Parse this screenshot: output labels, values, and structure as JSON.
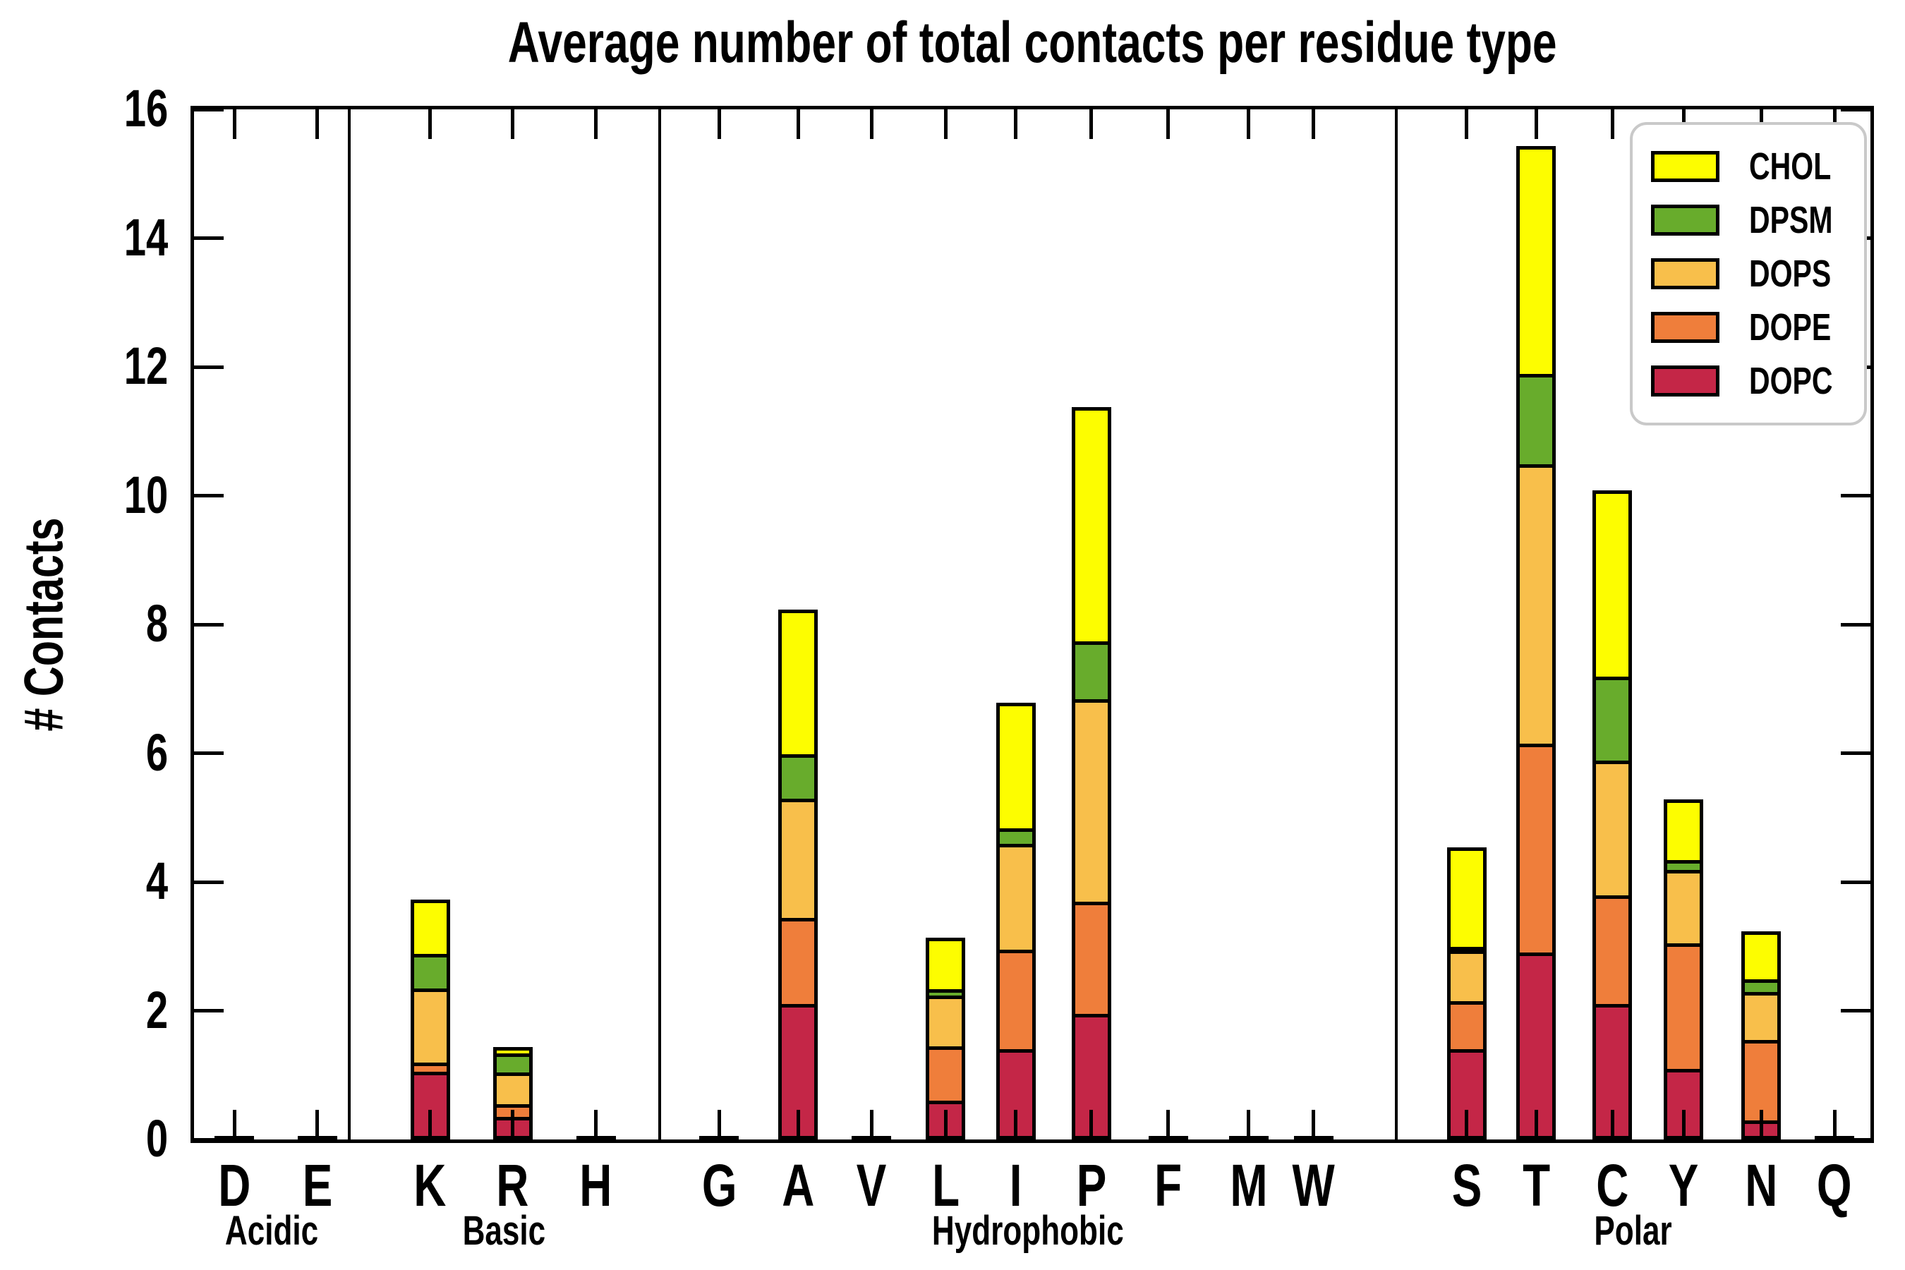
{
  "title": "Average number of total contacts per residue type",
  "ylabel": "# Contacts",
  "colors": {
    "background": "#ffffff",
    "bar_outline": "#000000",
    "axis": "#000000",
    "legend_border": "#c9c9c9"
  },
  "chart_data": {
    "type": "bar",
    "stacked": true,
    "title": "Average number of total contacts per residue type",
    "xlabel": "",
    "ylabel": "# Contacts",
    "ylim": [
      0,
      16
    ],
    "yticks": [
      0,
      2,
      4,
      6,
      8,
      10,
      12,
      14,
      16
    ],
    "grid": false,
    "legend_position": "upper right",
    "legend_order": [
      "CHOL",
      "DPSM",
      "DOPS",
      "DOPE",
      "DOPC"
    ],
    "groups": [
      {
        "label": "Acidic",
        "categories": [
          "D",
          "E"
        ]
      },
      {
        "label": "Basic",
        "categories": [
          "K",
          "R",
          "H"
        ]
      },
      {
        "label": "Hydrophobic",
        "categories": [
          "G",
          "A",
          "V",
          "L",
          "I",
          "P",
          "F",
          "M",
          "W"
        ]
      },
      {
        "label": "Polar",
        "categories": [
          "S",
          "T",
          "C",
          "Y",
          "N",
          "Q"
        ]
      }
    ],
    "categories_flat": [
      "D",
      "E",
      "K",
      "R",
      "H",
      "G",
      "A",
      "V",
      "L",
      "I",
      "P",
      "F",
      "M",
      "W",
      "S",
      "T",
      "C",
      "Y",
      "N",
      "Q"
    ],
    "series": [
      {
        "name": "DOPC",
        "color": "#c42647",
        "values": [
          0.02,
          0.02,
          1.05,
          0.35,
          0.02,
          0.02,
          2.1,
          0.02,
          0.6,
          1.4,
          1.95,
          0.02,
          0.02,
          0.02,
          1.4,
          2.9,
          2.1,
          1.1,
          0.3,
          0.02
        ]
      },
      {
        "name": "DOPE",
        "color": "#ef7e3b",
        "values": [
          0,
          0,
          0.2,
          0.25,
          0,
          0,
          1.4,
          0,
          0.9,
          1.6,
          1.8,
          0,
          0,
          0,
          0.8,
          3.3,
          1.75,
          2.0,
          1.3,
          0
        ]
      },
      {
        "name": "DOPS",
        "color": "#f8bf4b",
        "values": [
          0,
          0,
          1.2,
          0.55,
          0,
          0,
          1.9,
          0,
          0.85,
          1.7,
          3.2,
          0,
          0,
          0,
          0.85,
          4.4,
          2.15,
          1.2,
          0.8,
          0
        ]
      },
      {
        "name": "DPSM",
        "color": "#68ac2c",
        "values": [
          0,
          0,
          0.6,
          0.35,
          0,
          0,
          0.75,
          0,
          0.15,
          0.3,
          0.95,
          0,
          0,
          0,
          0.1,
          1.45,
          1.35,
          0.2,
          0.25,
          0
        ]
      },
      {
        "name": "CHOL",
        "color": "#fdfd00",
        "values": [
          0,
          0,
          0.9,
          0.15,
          0,
          0,
          2.3,
          0,
          0.85,
          2.0,
          3.7,
          0,
          0,
          0,
          1.6,
          3.6,
          2.95,
          1.0,
          0.8,
          0
        ]
      }
    ],
    "totals": [
      0.02,
      0.02,
      3.95,
      1.65,
      0.02,
      0.02,
      8.45,
      0.02,
      3.35,
      7.0,
      11.6,
      0.02,
      0.02,
      0.02,
      4.75,
      15.65,
      10.3,
      5.5,
      3.45,
      0.02
    ]
  }
}
